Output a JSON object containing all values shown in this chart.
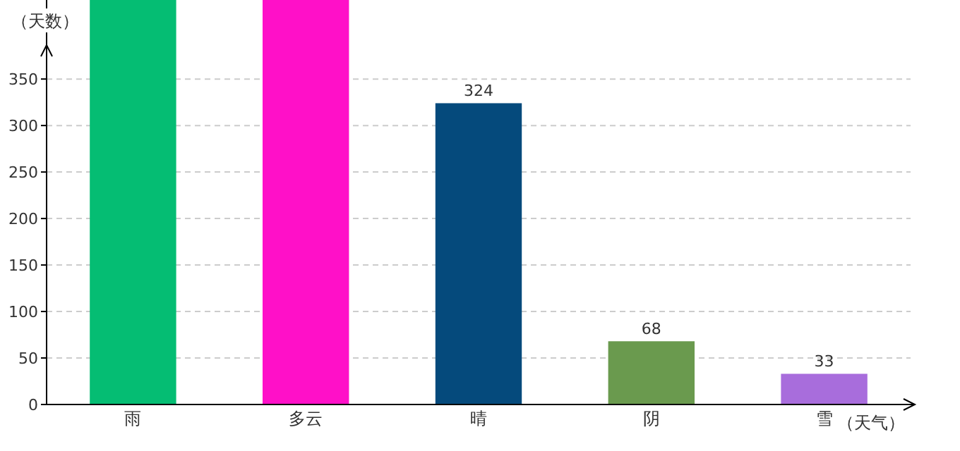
{
  "chart_data": {
    "type": "bar",
    "ylabel": "（天数）",
    "xlabel": "（天气）",
    "categories": [
      "雨",
      "多云",
      "晴",
      "阴",
      "雪"
    ],
    "values": [
      435,
      435,
      324,
      68,
      33
    ],
    "colors": [
      "#05bd73",
      "#ff10c8",
      "#054a7c",
      "#6a9a4e",
      "#a86ddc"
    ],
    "value_labels": [
      null,
      null,
      "324",
      "68",
      "33"
    ],
    "ylim": [
      0,
      435
    ],
    "yticks": [
      0,
      50,
      100,
      150,
      200,
      250,
      300,
      350
    ],
    "grid": "y"
  }
}
